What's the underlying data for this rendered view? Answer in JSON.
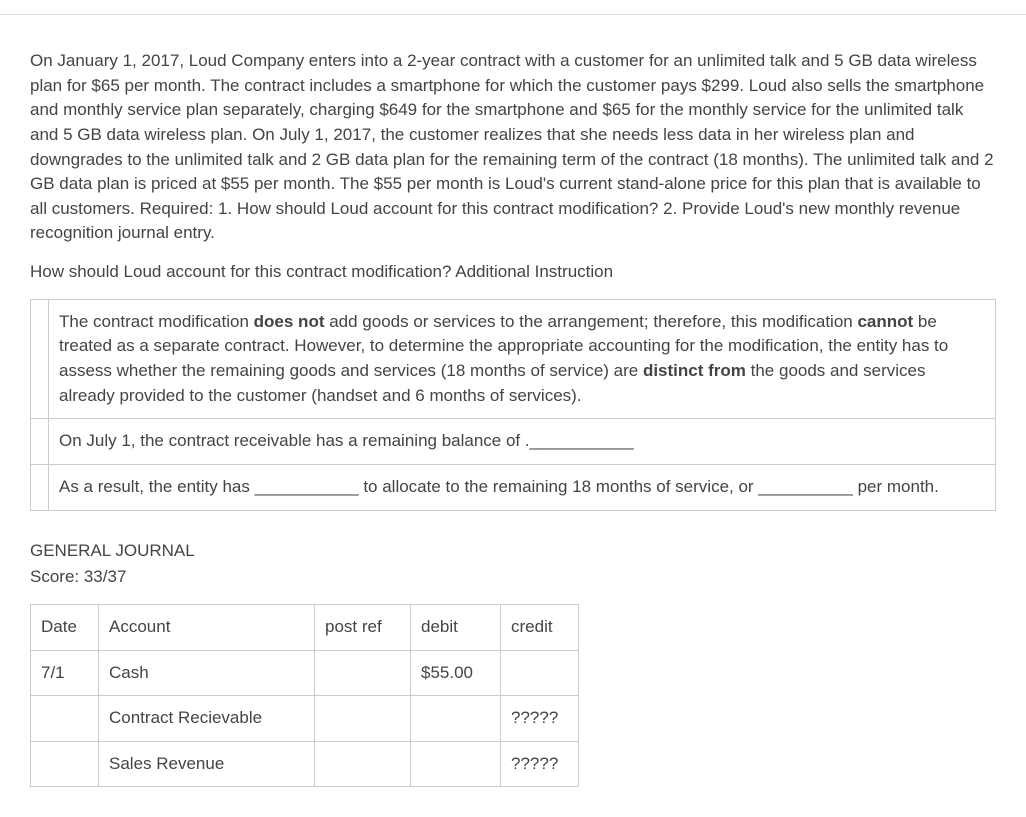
{
  "problem_text": "On January 1, 2017, Loud Company enters into a 2-year contract with a customer for an unlimited talk and 5 GB data wireless plan for $65 per month. The contract includes a smartphone for which the customer pays $299. Loud also sells the smartphone and monthly service plan separately, charging $649 for the smartphone and $65 for the monthly service for the unlimited talk and 5 GB data wireless plan. On July 1, 2017, the customer realizes that she needs less data in her wireless plan and downgrades to the unlimited talk and 2 GB data plan for the remaining term of the contract (18 months). The unlimited talk and 2 GB data plan is priced at $55 per month. The $55 per month is Loud's current stand-alone price for this plan that is available to all customers. Required: 1. How should Loud account for this contract modification? 2. Provide Loud's new monthly revenue recognition journal entry.",
  "instruction_line": "How should Loud account for this contract modification? Additional Instruction",
  "boxes": {
    "row1": {
      "pre1": "The contract modification ",
      "bold1": "does not",
      "mid1": " add goods or services to the arrangement; therefore, this modification ",
      "bold2": "cannot",
      "mid2": " be treated as a separate contract. However, to determine the appropriate accounting for the modification, the entity has to assess whether the remaining goods and services (18 months of service) are ",
      "bold3": "distinct from",
      "post": " the goods and services already provided to the customer (handset and 6 months of services)."
    },
    "row2": "On July 1, the contract receivable has a remaining balance of .___________",
    "row3": "As a result, the entity has ___________ to allocate to the remaining 18 months of service, or __________ per month."
  },
  "journal": {
    "title": "GENERAL JOURNAL",
    "score": "Score: 33/37",
    "headers": {
      "date": "Date",
      "account": "Account",
      "postref": "post ref",
      "debit": "debit",
      "credit": "credit"
    },
    "rows": [
      {
        "date": "7/1",
        "account": "Cash",
        "postref": "",
        "debit": "$55.00",
        "credit": ""
      },
      {
        "date": "",
        "account": "Contract Recievable",
        "postref": "",
        "debit": "",
        "credit": "?????"
      },
      {
        "date": "",
        "account": "Sales Revenue",
        "postref": "",
        "debit": "",
        "credit": "?????"
      }
    ]
  }
}
